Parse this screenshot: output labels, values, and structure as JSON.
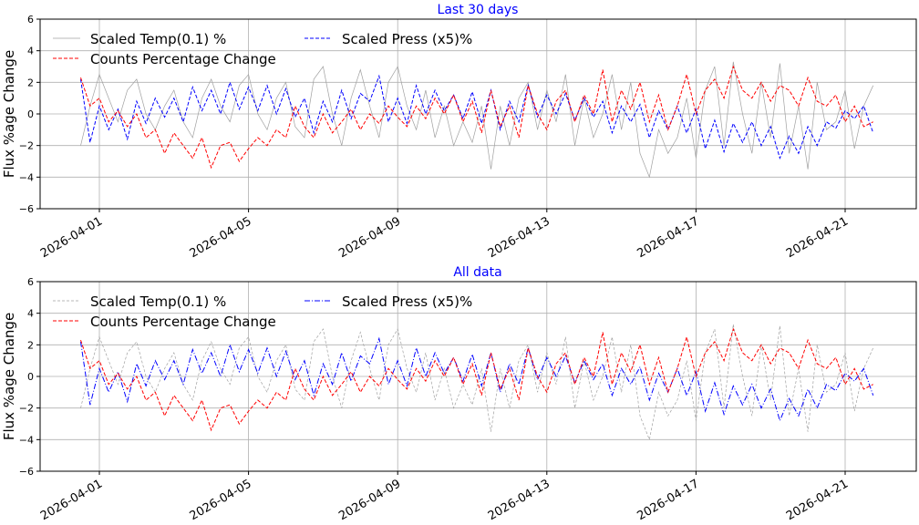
{
  "chart_data": {
    "type": "line",
    "start": "2026-03-31T12:00",
    "step_hours": 6,
    "ylim": [
      -6,
      6
    ],
    "yticks": [
      "6",
      "4",
      "2",
      "0",
      "−2",
      "−4",
      "−6"
    ],
    "xticks": [
      "2026-04-01",
      "2026-04-05",
      "2026-04-09",
      "2026-04-13",
      "2026-04-17",
      "2026-04-21"
    ],
    "ylabel": "Flux %age Change",
    "grid": true,
    "legend_placement": "top-left",
    "series": [
      {
        "name": "Scaled Temp(0.1) %",
        "color": "#a0a0a0",
        "values": [
          -2.0,
          0.5,
          2.5,
          1.0,
          -0.5,
          1.5,
          2.2,
          0.0,
          -1.0,
          0.5,
          1.5,
          -0.5,
          -1.5,
          1.0,
          2.2,
          0.5,
          -0.5,
          1.8,
          2.5,
          0.0,
          -1.0,
          1.0,
          2.0,
          -0.8,
          -1.5,
          2.2,
          3.0,
          0.0,
          -2.0,
          1.0,
          2.8,
          0.5,
          -1.5,
          2.0,
          3.0,
          0.5,
          -1.0,
          1.5,
          -1.5,
          0.5,
          -2.0,
          -0.5,
          -1.8,
          0.5,
          -3.5,
          0.5,
          -2.0,
          1.0,
          2.0,
          -1.0,
          1.5,
          -0.5,
          2.5,
          -2.0,
          1.0,
          -1.5,
          0.0,
          2.5,
          -1.0,
          2.0,
          -2.5,
          -4.0,
          -1.0,
          -2.5,
          -1.5,
          1.0,
          -2.8,
          1.5,
          3.0,
          -2.0,
          3.3,
          0.0,
          -2.5,
          2.0,
          -1.5,
          3.2,
          -2.5,
          0.5,
          -3.5,
          2.0,
          -1.0,
          -0.5,
          1.5,
          -2.2,
          0.5,
          1.8
        ]
      },
      {
        "name": "Scaled Press (x5)%",
        "color": "#0000ff",
        "values": [
          2.2,
          -1.8,
          0.5,
          -1.0,
          0.3,
          -1.6,
          0.8,
          -0.6,
          1.0,
          -0.2,
          1.0,
          -0.5,
          1.7,
          0.2,
          1.5,
          0.0,
          2.0,
          0.3,
          1.7,
          0.2,
          1.8,
          0.0,
          1.6,
          -0.2,
          1.0,
          -1.2,
          0.8,
          -0.5,
          1.5,
          -0.3,
          1.3,
          0.8,
          2.4,
          -0.5,
          1.0,
          -0.6,
          1.8,
          0.0,
          1.5,
          0.2,
          1.2,
          -0.3,
          1.4,
          -0.6,
          1.5,
          -1.0,
          0.8,
          -0.5,
          1.8,
          -0.2,
          1.2,
          0.0,
          1.3,
          -0.4,
          1.0,
          -0.2,
          0.8,
          -1.2,
          0.5,
          -0.5,
          0.6,
          -1.5,
          0.2,
          -1.0,
          0.5,
          -1.2,
          0.3,
          -2.2,
          -0.4,
          -2.4,
          -0.6,
          -1.8,
          -0.5,
          -2.0,
          -0.8,
          -2.8,
          -1.4,
          -2.5,
          -0.8,
          -2.0,
          -0.5,
          -0.9,
          0.2,
          -0.3,
          0.5,
          -1.2
        ]
      },
      {
        "name": "Counts Percentage Change",
        "color": "#ff0000",
        "values": [
          2.3,
          0.5,
          1.0,
          -0.5,
          0.2,
          -0.8,
          0.0,
          -1.5,
          -1.0,
          -2.5,
          -1.2,
          -2.0,
          -2.8,
          -1.5,
          -3.4,
          -2.0,
          -1.8,
          -3.0,
          -2.2,
          -1.5,
          -2.0,
          -1.0,
          -1.5,
          0.5,
          -0.8,
          -1.5,
          0.0,
          -1.2,
          -0.5,
          0.3,
          -1.0,
          0.0,
          -0.6,
          0.5,
          -0.2,
          -0.8,
          0.5,
          -0.3,
          1.0,
          0.0,
          1.2,
          -0.5,
          0.8,
          -1.2,
          1.5,
          -0.8,
          0.5,
          -1.5,
          1.8,
          0.0,
          -1.0,
          0.8,
          1.5,
          -0.5,
          1.2,
          0.0,
          2.8,
          -0.5,
          1.5,
          0.3,
          2.0,
          -0.5,
          1.2,
          -1.0,
          0.5,
          2.5,
          0.0,
          1.5,
          2.2,
          1.0,
          3.0,
          1.5,
          1.0,
          2.0,
          0.8,
          1.8,
          1.5,
          0.5,
          2.3,
          0.8,
          0.5,
          1.2,
          -0.5,
          0.5,
          -0.8,
          -0.5
        ]
      }
    ],
    "panels": [
      {
        "title": "Last 30 days",
        "dash": {
          "temp": "",
          "press": "4,2",
          "counts": "4,2"
        }
      },
      {
        "title": "All data",
        "dash": {
          "temp": "3,2",
          "press": "6,2,1,2",
          "counts": "4,2"
        }
      }
    ]
  }
}
